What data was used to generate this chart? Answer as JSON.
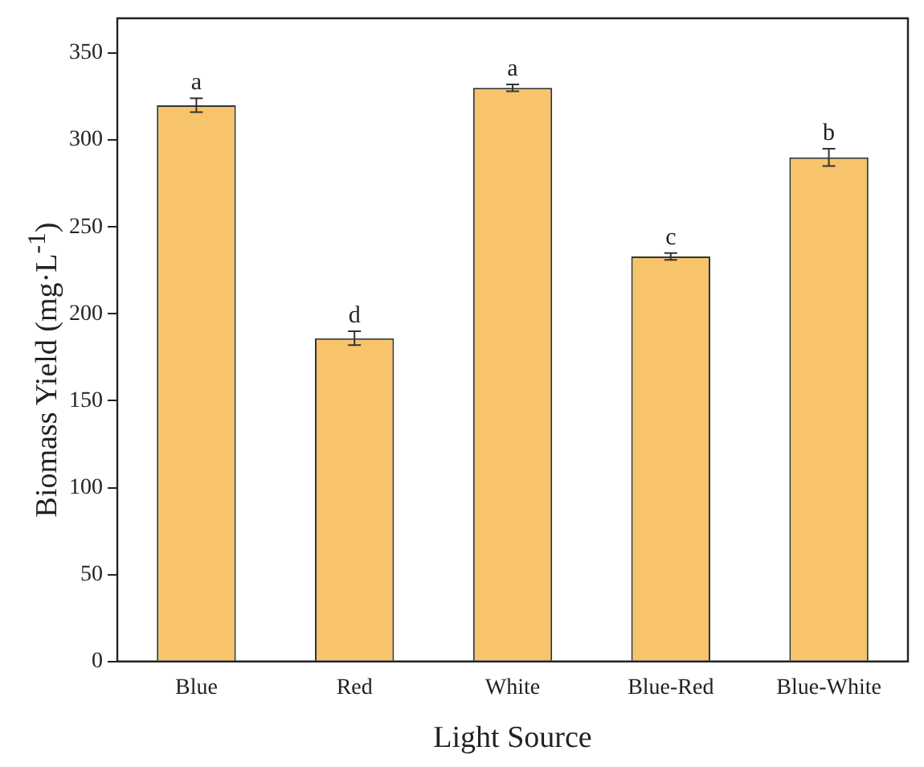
{
  "chart_data": {
    "type": "bar",
    "xlabel": "Light Source",
    "ylabel": "Biomass Yield (mg·L$^{-1}$)",
    "categories": [
      "Blue",
      "Red",
      "White",
      "Blue-Red",
      "Blue-White"
    ],
    "values": [
      320,
      186,
      330,
      233,
      290
    ],
    "errors": [
      4,
      4,
      2,
      2,
      5
    ],
    "color": "#f7c46c",
    "ylim": [
      0,
      370
    ],
    "yticks": [
      0,
      50,
      100,
      150,
      200,
      250,
      300,
      350
    ],
    "grid": false,
    "annotations": [
      {
        "text": "a",
        "x": "Blue",
        "y": 324
      },
      {
        "text": "d",
        "x": "Red",
        "y": 190
      },
      {
        "text": "a",
        "x": "White",
        "y": 332
      },
      {
        "text": "c",
        "x": "Blue-Red",
        "y": 235
      },
      {
        "text": "b",
        "x": "Blue-White",
        "y": 295
      }
    ]
  }
}
